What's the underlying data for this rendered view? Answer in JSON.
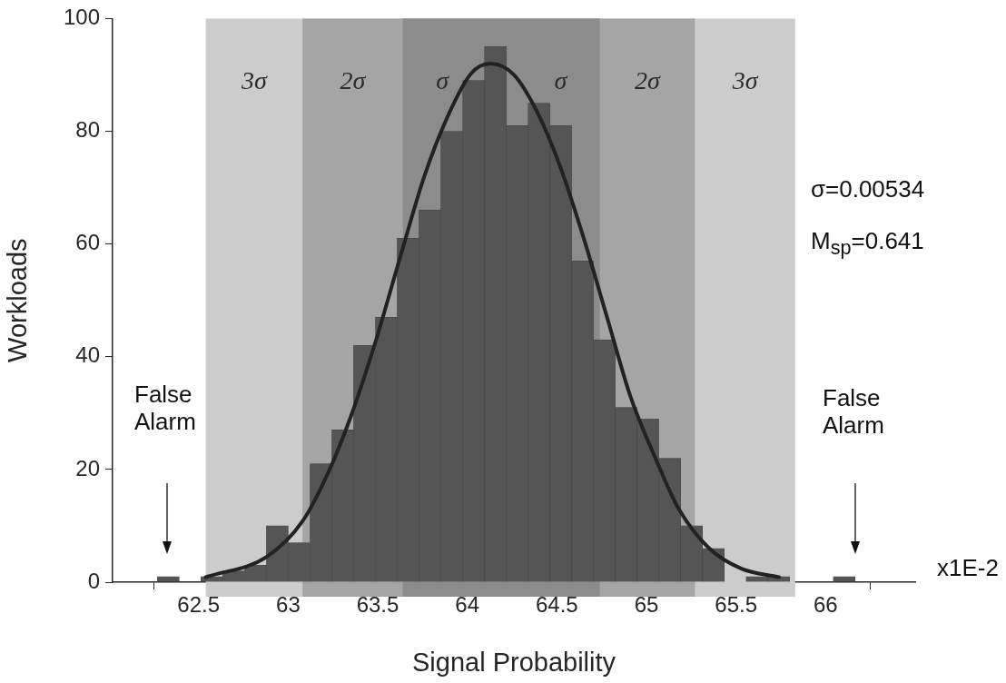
{
  "chart_data": {
    "type": "histogram",
    "xlabel": "Signal Probability",
    "ylabel": "Workloads",
    "bins": [
      62.27,
      62.392,
      62.513,
      62.635,
      62.757,
      62.879,
      63.0,
      63.122,
      63.244,
      63.365,
      63.487,
      63.609,
      63.73,
      63.852,
      63.974,
      64.096,
      64.217,
      64.339,
      64.461,
      64.582,
      64.704,
      64.826,
      64.947,
      65.069,
      65.191,
      65.313,
      65.434,
      65.556,
      65.678,
      65.799,
      65.921,
      66.043,
      66.164
    ],
    "values": [
      1,
      0,
      1,
      2,
      3,
      10,
      7,
      21,
      27,
      42,
      47,
      61,
      66,
      80,
      89,
      95,
      81,
      85,
      81,
      57,
      43,
      31,
      29,
      22,
      10,
      6,
      0,
      1,
      1,
      0,
      0,
      1
    ],
    "color": "#555555",
    "series": [
      {
        "type": "line",
        "color": "#222222",
        "x": [
          62.54,
          62.88,
          63.08,
          63.23,
          63.36,
          63.49,
          63.63,
          63.76,
          63.89,
          64.02,
          64.13,
          64.26,
          64.39,
          64.52,
          64.65,
          64.78,
          64.91,
          65.05,
          65.18,
          65.35,
          65.53,
          65.74
        ],
        "values": [
          0.9,
          4.5,
          10.8,
          19.9,
          30.3,
          42.9,
          58.2,
          72,
          82.6,
          90.2,
          92,
          90,
          83.4,
          73.6,
          61,
          47,
          33,
          22,
          13,
          6,
          2.4,
          0.9
        ]
      }
    ],
    "bands": [
      {
        "axis": "x",
        "from": 62.54,
        "to": 65.83,
        "label": "3σ",
        "color": "#cccccc"
      },
      {
        "axis": "x",
        "from": 63.08,
        "to": 65.27,
        "label": "2σ",
        "color": "#a5a5a5"
      },
      {
        "axis": "x",
        "from": 63.64,
        "to": 64.74,
        "label": "σ",
        "color": "#8c8c8c"
      }
    ],
    "annotations": [
      "False Alarm",
      "False Alarm",
      "σ=0.00534",
      "M$_{sp}$=0.641",
      "x1E-2"
    ],
    "xlim": [
      62.02,
      66.5
    ],
    "ylim": [
      0,
      100
    ],
    "xticks": [
      62.5,
      63,
      63.5,
      64,
      64.5,
      65,
      65.5,
      66
    ],
    "yticks": [
      0,
      20,
      40,
      60,
      80,
      100
    ],
    "grid": false,
    "legend": false,
    "marker": "none",
    "line_style": "solid"
  }
}
